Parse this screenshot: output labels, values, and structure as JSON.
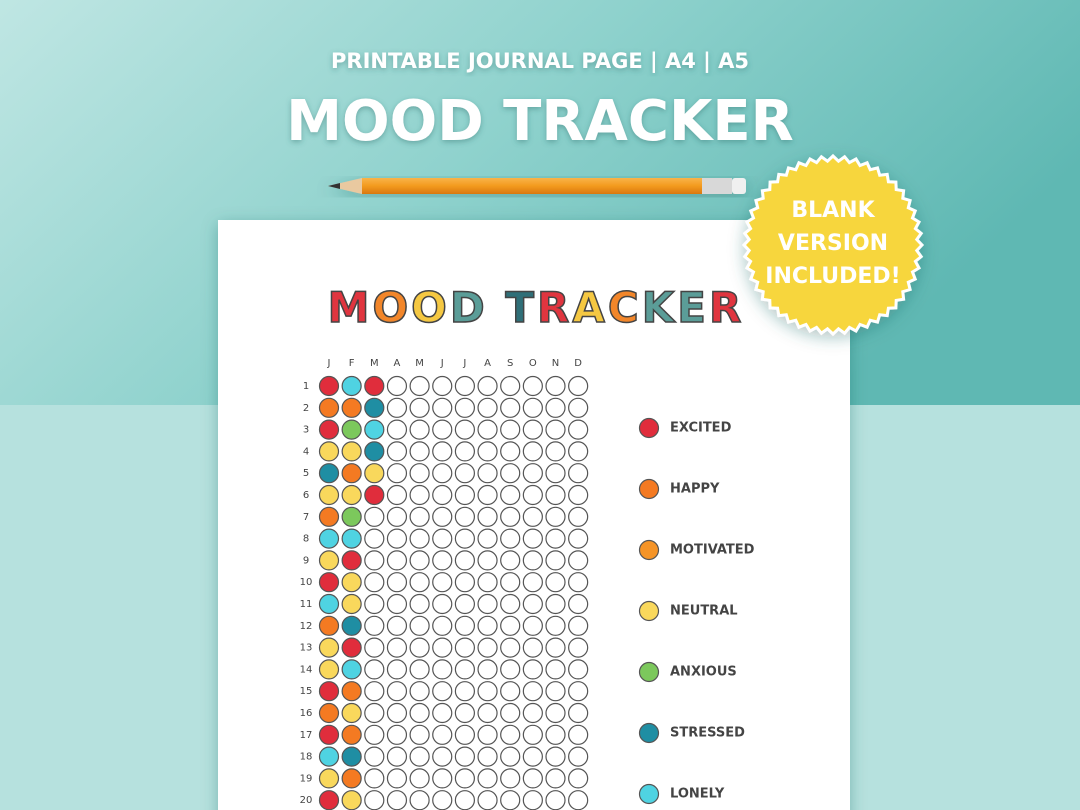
{
  "header": {
    "subtitle": "PRINTABLE JOURNAL PAGE | A4 | A5",
    "title": "MOOD TRACKER"
  },
  "badge": {
    "lines": [
      "BLANK",
      "VERSION",
      "INCLUDED!"
    ]
  },
  "page": {
    "title": "MOOD TRACKER",
    "title_colors": [
      "#e0353f",
      "#f2862a",
      "#f5c842",
      "#5b9d98",
      "",
      "#2f6f78",
      "#e0353f",
      "#f5c842",
      "#f2862a",
      "#5b9d98",
      "#5b9d98",
      "#e0353f"
    ],
    "months": [
      "J",
      "F",
      "M",
      "A",
      "M",
      "J",
      "J",
      "A",
      "S",
      "O",
      "N",
      "D"
    ],
    "rows": [
      {
        "day": 1,
        "moods": [
          0,
          6,
          0
        ]
      },
      {
        "day": 2,
        "moods": [
          1,
          1,
          5
        ]
      },
      {
        "day": 3,
        "moods": [
          0,
          4,
          6
        ]
      },
      {
        "day": 4,
        "moods": [
          3,
          3,
          5
        ]
      },
      {
        "day": 5,
        "moods": [
          5,
          1,
          3
        ]
      },
      {
        "day": 6,
        "moods": [
          3,
          3,
          0
        ]
      },
      {
        "day": 7,
        "moods": [
          1,
          4
        ]
      },
      {
        "day": 8,
        "moods": [
          6,
          6
        ]
      },
      {
        "day": 9,
        "moods": [
          3,
          0
        ]
      },
      {
        "day": 10,
        "moods": [
          0,
          3
        ]
      },
      {
        "day": 11,
        "moods": [
          6,
          3
        ]
      },
      {
        "day": 12,
        "moods": [
          1,
          5
        ]
      },
      {
        "day": 13,
        "moods": [
          3,
          0
        ]
      },
      {
        "day": 14,
        "moods": [
          3,
          6
        ]
      },
      {
        "day": 15,
        "moods": [
          0,
          1
        ]
      },
      {
        "day": 16,
        "moods": [
          1,
          3
        ]
      },
      {
        "day": 17,
        "moods": [
          0,
          1
        ]
      },
      {
        "day": 18,
        "moods": [
          6,
          5
        ]
      },
      {
        "day": 19,
        "moods": [
          3,
          1
        ]
      },
      {
        "day": 20,
        "moods": [
          0,
          3
        ]
      }
    ],
    "legend": [
      {
        "label": "EXCITED",
        "color": "#e02d3c"
      },
      {
        "label": "HAPPY",
        "color": "#f47a22"
      },
      {
        "label": "MOTIVATED",
        "color": "#f59427"
      },
      {
        "label": "NEUTRAL",
        "color": "#f9d85c"
      },
      {
        "label": "ANXIOUS",
        "color": "#7cc85c"
      },
      {
        "label": "STRESSED",
        "color": "#1f8ea3"
      },
      {
        "label": "LONELY",
        "color": "#4fd3e2"
      }
    ]
  }
}
